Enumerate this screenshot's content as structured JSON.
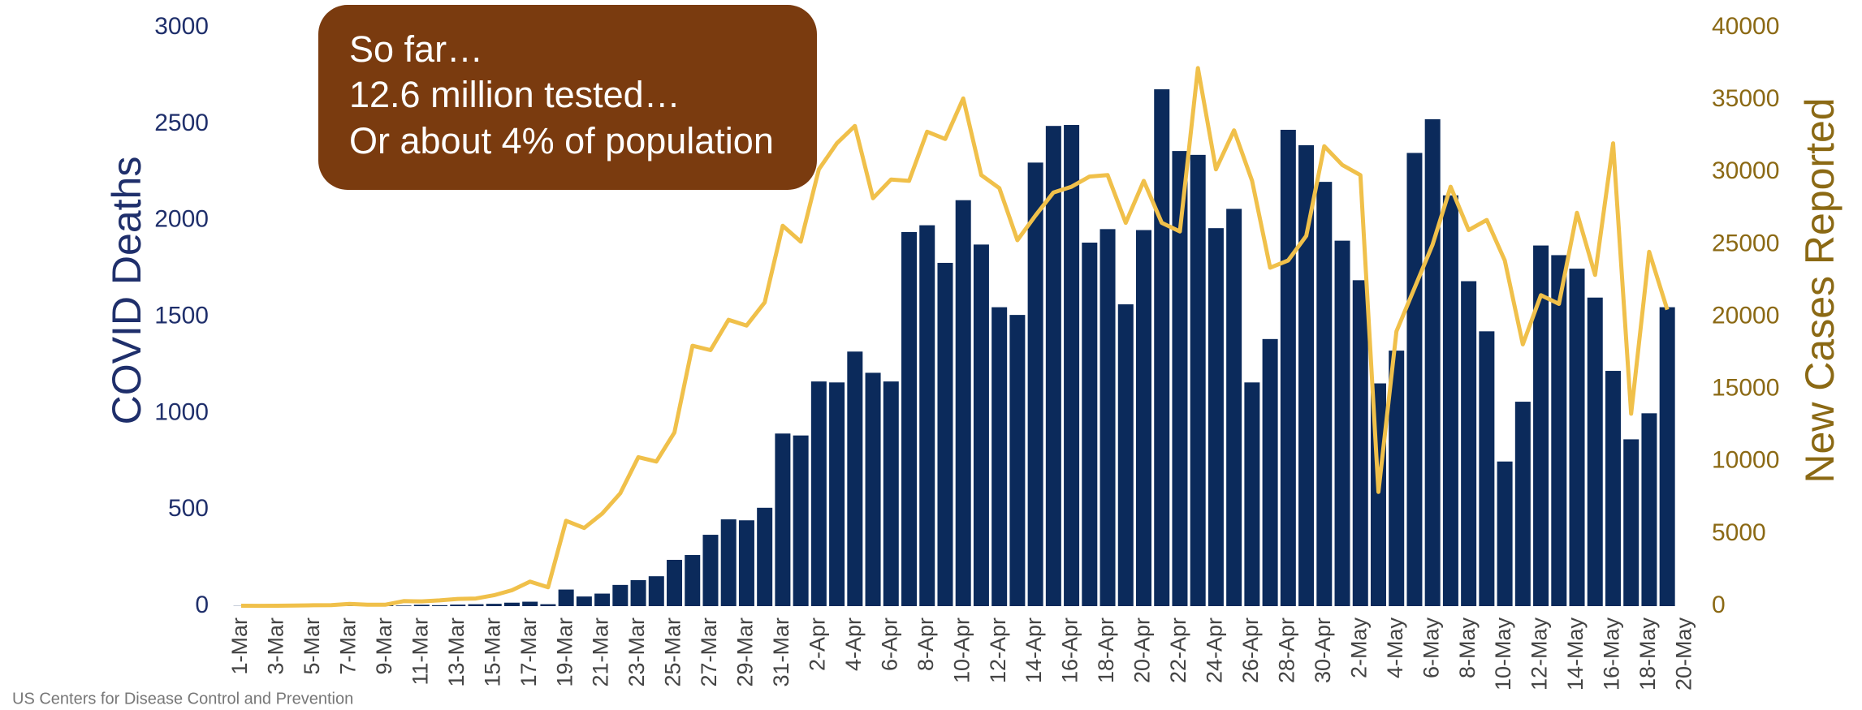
{
  "chart_data": {
    "type": "bar",
    "ylabel": "COVID Deaths",
    "y2label": "New Cases Reported",
    "annotation": [
      "So far…",
      "12.6 million tested…",
      "Or about 4% of population"
    ],
    "source": "US Centers for Disease Control and Prevention",
    "categories": [
      "1-Mar",
      null,
      "3-Mar",
      null,
      "5-Mar",
      null,
      "7-Mar",
      null,
      "9-Mar",
      null,
      "11-Mar",
      null,
      "13-Mar",
      null,
      "15-Mar",
      null,
      "17-Mar",
      null,
      "19-Mar",
      null,
      "21-Mar",
      null,
      "23-Mar",
      null,
      "25-Mar",
      null,
      "27-Mar",
      null,
      "29-Mar",
      null,
      "31-Mar",
      null,
      "2-Apr",
      null,
      "4-Apr",
      null,
      "6-Apr",
      null,
      "8-Apr",
      null,
      "10-Apr",
      null,
      "12-Apr",
      null,
      "14-Apr",
      null,
      "16-Apr",
      null,
      "18-Apr",
      null,
      "20-Apr",
      null,
      "22-Apr",
      null,
      "24-Apr",
      null,
      "26-Apr",
      null,
      "28-Apr",
      null,
      "30-Apr",
      null,
      "2-May",
      null,
      "4-May",
      null,
      "6-May",
      null,
      "8-May",
      null,
      "10-May",
      null,
      "12-May",
      null,
      "14-May",
      null,
      "16-May",
      null,
      "18-May",
      null,
      "20-May"
    ],
    "series": [
      {
        "type": "bar",
        "color": "#0b2a5b",
        "values": [
          1,
          0,
          1,
          1,
          2,
          1,
          2,
          3,
          4,
          3,
          7,
          5,
          8,
          10,
          12,
          18,
          23,
          10,
          86,
          50,
          65,
          110,
          135,
          155,
          240,
          265,
          370,
          450,
          445,
          510,
          895,
          885,
          1165,
          1160,
          1320,
          1210,
          1165,
          1940,
          1975,
          1780,
          2105,
          1875,
          1550,
          1510,
          2300,
          2490,
          2495,
          1885,
          1955,
          1565,
          1950,
          2680,
          2360,
          2340,
          1960,
          2060,
          1160,
          1385,
          2470,
          2390,
          2200,
          1895,
          1690,
          1155,
          1325,
          2350,
          2525,
          2130,
          1685,
          1425,
          750,
          1060,
          1870,
          1820,
          1750,
          1600,
          1220,
          865,
          1000,
          1550,
          null
        ]
      },
      {
        "type": "line",
        "axis": "y2",
        "color": "#f0c04a",
        "values": [
          30,
          20,
          30,
          40,
          60,
          70,
          150,
          100,
          100,
          350,
          330,
          400,
          500,
          530,
          750,
          1100,
          1700,
          1300,
          5900,
          5400,
          6400,
          7800,
          10300,
          10000,
          12000,
          18000,
          17700,
          19800,
          19400,
          21000,
          26300,
          25200,
          30200,
          32000,
          33200,
          28200,
          29500,
          29400,
          32800,
          32300,
          35100,
          29800,
          28900,
          25300,
          27000,
          28600,
          29000,
          29700,
          29800,
          26500,
          29400,
          26500,
          25900,
          37200,
          30200,
          32900,
          29400,
          23400,
          23900,
          25600,
          31800,
          30500,
          29800,
          7900,
          19000,
          22000,
          25000,
          29000,
          26000,
          26700,
          23900,
          18100,
          21500,
          20900,
          27200,
          22900,
          32000,
          13300,
          24500,
          20500,
          null
        ]
      }
    ],
    "ylim": [
      0,
      3000
    ],
    "yticks": [
      0,
      500,
      1000,
      1500,
      2000,
      2500,
      3000
    ],
    "y2lim": [
      0,
      40000
    ],
    "y2ticks": [
      0,
      5000,
      10000,
      15000,
      20000,
      25000,
      30000,
      35000,
      40000
    ],
    "grid": false
  }
}
